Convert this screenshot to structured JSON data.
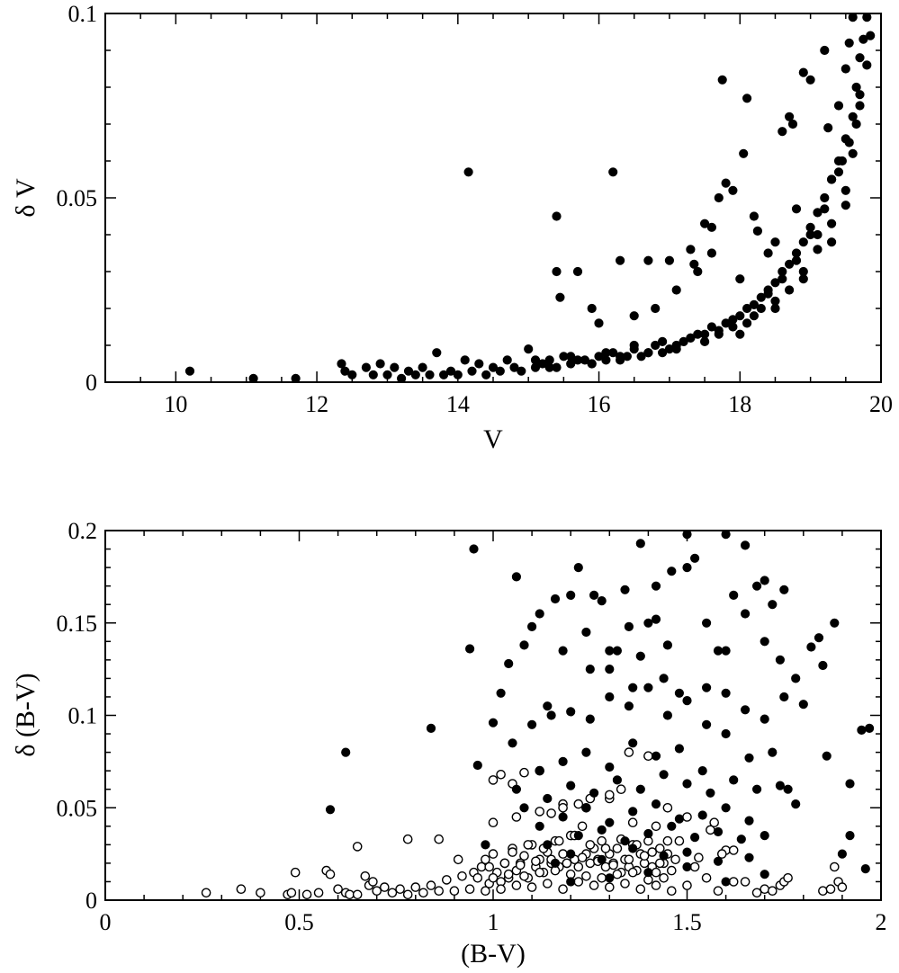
{
  "chart_data": [
    {
      "type": "scatter",
      "title": "",
      "xlabel": "V",
      "ylabel": "δ V",
      "xlim": [
        9,
        20
      ],
      "ylim": [
        0,
        0.1
      ],
      "xticks": [
        10,
        12,
        14,
        16,
        18,
        20
      ],
      "xtick_labels": [
        "10",
        "12",
        "14",
        "16",
        "18",
        "20"
      ],
      "yticks": [
        0,
        0.05,
        0.1
      ],
      "ytick_labels": [
        "0",
        "0.05",
        "0.1"
      ],
      "grid": false,
      "series": [
        {
          "marker": "filled-circle",
          "x": [
            10.2,
            11.1,
            11.7,
            12.35,
            12.4,
            12.5,
            12.7,
            12.8,
            12.9,
            13.0,
            13.1,
            13.2,
            13.3,
            13.4,
            13.5,
            13.6,
            13.7,
            13.8,
            13.9,
            14.0,
            14.1,
            14.2,
            14.3,
            14.4,
            14.5,
            14.6,
            14.7,
            14.8,
            14.9,
            15.0,
            15.1,
            15.2,
            15.3,
            15.4,
            15.5,
            15.6,
            15.7,
            15.8,
            15.9,
            16.0,
            16.1,
            16.2,
            16.3,
            16.4,
            16.5,
            16.6,
            16.7,
            16.8,
            16.9,
            17.0,
            17.1,
            17.2,
            17.3,
            17.4,
            17.5,
            17.6,
            17.7,
            17.8,
            17.9,
            18.0,
            18.1,
            18.2,
            18.3,
            18.4,
            18.5,
            18.6,
            18.7,
            18.8,
            18.9,
            19.0,
            19.1,
            19.2,
            19.3,
            19.4,
            19.5,
            19.6,
            19.7,
            19.8,
            15.1,
            15.3,
            15.6,
            15.9,
            16.1,
            16.3,
            16.5,
            16.7,
            16.9,
            17.1,
            17.3,
            17.5,
            17.7,
            17.9,
            18.1,
            18.3,
            18.5,
            18.7,
            18.9,
            19.1,
            19.3,
            19.5,
            19.6,
            19.7,
            18.2,
            18.4,
            18.6,
            18.8,
            19.0,
            19.2,
            19.4,
            19.55,
            19.65,
            19.75,
            18.0,
            18.5,
            18.9,
            19.3,
            19.5,
            19.65,
            19.8,
            14.15,
            16.2,
            15.4,
            15.4,
            15.45,
            15.7,
            15.9,
            16.0,
            16.3,
            16.5,
            16.7,
            16.8,
            17.0,
            17.1,
            17.3,
            17.4,
            17.5,
            17.6,
            17.7,
            17.75,
            17.8,
            17.9,
            18.0,
            18.1,
            18.2,
            18.4,
            18.5,
            18.6,
            18.7,
            18.8,
            18.9,
            19.0,
            19.1,
            19.2,
            19.3,
            19.4,
            19.45,
            19.5,
            19.55,
            19.6,
            19.7,
            17.35,
            17.6,
            18.05,
            18.25,
            18.75,
            19.25,
            19.85
          ],
          "y": [
            0.003,
            0.001,
            0.001,
            0.005,
            0.003,
            0.002,
            0.004,
            0.002,
            0.005,
            0.002,
            0.004,
            0.001,
            0.003,
            0.002,
            0.004,
            0.002,
            0.008,
            0.002,
            0.003,
            0.002,
            0.006,
            0.003,
            0.005,
            0.002,
            0.004,
            0.003,
            0.006,
            0.004,
            0.003,
            0.009,
            0.004,
            0.005,
            0.006,
            0.004,
            0.007,
            0.005,
            0.006,
            0.006,
            0.005,
            0.007,
            0.006,
            0.008,
            0.007,
            0.007,
            0.009,
            0.007,
            0.008,
            0.01,
            0.008,
            0.009,
            0.01,
            0.011,
            0.012,
            0.013,
            0.013,
            0.015,
            0.014,
            0.016,
            0.017,
            0.018,
            0.02,
            0.021,
            0.023,
            0.025,
            0.027,
            0.03,
            0.032,
            0.035,
            0.038,
            0.042,
            0.046,
            0.05,
            0.055,
            0.06,
            0.066,
            0.072,
            0.078,
            0.086,
            0.006,
            0.004,
            0.007,
            0.005,
            0.008,
            0.006,
            0.01,
            0.008,
            0.011,
            0.009,
            0.012,
            0.011,
            0.013,
            0.015,
            0.016,
            0.02,
            0.022,
            0.025,
            0.03,
            0.036,
            0.043,
            0.052,
            0.062,
            0.075,
            0.018,
            0.024,
            0.028,
            0.033,
            0.04,
            0.047,
            0.057,
            0.065,
            0.08,
            0.093,
            0.013,
            0.02,
            0.028,
            0.038,
            0.048,
            0.07,
            0.099,
            0.057,
            0.057,
            0.045,
            0.03,
            0.023,
            0.03,
            0.02,
            0.016,
            0.033,
            0.018,
            0.033,
            0.02,
            0.033,
            0.025,
            0.036,
            0.03,
            0.043,
            0.035,
            0.05,
            0.082,
            0.054,
            0.052,
            0.028,
            0.077,
            0.045,
            0.035,
            0.038,
            0.068,
            0.072,
            0.047,
            0.084,
            0.082,
            0.04,
            0.09,
            0.055,
            0.075,
            0.06,
            0.085,
            0.092,
            0.099,
            0.088,
            0.032,
            0.042,
            0.062,
            0.041,
            0.07,
            0.069,
            0.094
          ]
        }
      ]
    },
    {
      "type": "scatter",
      "title": "",
      "xlabel": "(B-V)",
      "ylabel": "δ (B-V)",
      "xlim": [
        0,
        2
      ],
      "ylim": [
        0,
        0.2
      ],
      "xticks": [
        0,
        0.5,
        1,
        1.5,
        2
      ],
      "xtick_labels": [
        "0",
        "0.5",
        "1",
        "1.5",
        "2"
      ],
      "yticks": [
        0,
        0.05,
        0.1,
        0.15,
        0.2
      ],
      "ytick_labels": [
        "0",
        "0.05",
        "0.1",
        "0.15",
        "0.2"
      ],
      "grid": false,
      "series": [
        {
          "marker": "open-circle",
          "x": [
            0.26,
            0.35,
            0.4,
            0.47,
            0.48,
            0.49,
            0.52,
            0.55,
            0.57,
            0.58,
            0.6,
            0.62,
            0.63,
            0.65,
            0.67,
            0.68,
            0.69,
            0.7,
            0.72,
            0.74,
            0.76,
            0.78,
            0.8,
            0.82,
            0.84,
            0.86,
            0.88,
            0.9,
            0.92,
            0.94,
            0.95,
            0.96,
            0.97,
            0.98,
            0.99,
            1.0,
            1.01,
            1.02,
            1.03,
            1.04,
            1.05,
            1.06,
            1.07,
            1.08,
            1.09,
            1.1,
            1.11,
            1.12,
            1.13,
            1.14,
            1.15,
            1.16,
            1.17,
            1.18,
            1.19,
            1.2,
            1.21,
            1.22,
            1.23,
            1.24,
            1.25,
            1.26,
            1.27,
            1.28,
            1.29,
            1.3,
            1.31,
            1.32,
            1.33,
            1.34,
            1.35,
            1.36,
            1.37,
            1.38,
            1.39,
            1.4,
            1.41,
            1.42,
            1.43,
            1.44,
            1.45,
            1.46,
            1.47,
            1.48,
            1.5,
            1.52,
            1.55,
            1.57,
            1.58,
            1.6,
            1.62,
            1.65,
            1.68,
            1.7,
            1.72,
            1.74,
            1.75,
            1.76,
            1.85,
            1.87,
            1.88,
            1.89,
            1.9,
            0.98,
            1.02,
            1.06,
            1.1,
            1.14,
            1.18,
            1.22,
            1.26,
            1.3,
            1.34,
            1.38,
            1.42,
            1.46,
            1.0,
            1.04,
            1.08,
            1.12,
            1.16,
            1.2,
            1.24,
            1.28,
            1.32,
            1.36,
            1.4,
            1.44,
            0.99,
            1.03,
            1.07,
            1.11,
            1.15,
            1.19,
            1.23,
            1.27,
            1.31,
            1.35,
            1.39,
            1.43,
            1.05,
            1.09,
            1.13,
            1.17,
            1.21,
            1.25,
            1.29,
            1.33,
            1.37,
            1.41,
            1.45,
            1.0,
            1.06,
            1.12,
            1.18,
            1.24,
            1.3,
            1.36,
            1.42,
            0.65,
            0.78,
            0.86,
            0.91,
            1.0,
            1.02,
            1.05,
            1.08,
            1.12,
            1.15,
            1.18,
            1.22,
            1.25,
            1.3,
            1.33,
            1.35,
            1.4,
            1.45,
            1.5,
            1.53,
            1.56,
            1.59,
            1.62
          ],
          "y": [
            0.004,
            0.006,
            0.004,
            0.003,
            0.004,
            0.015,
            0.003,
            0.004,
            0.016,
            0.014,
            0.006,
            0.004,
            0.003,
            0.003,
            0.013,
            0.008,
            0.01,
            0.005,
            0.007,
            0.004,
            0.006,
            0.003,
            0.007,
            0.004,
            0.008,
            0.005,
            0.011,
            0.005,
            0.013,
            0.006,
            0.015,
            0.012,
            0.018,
            0.022,
            0.009,
            0.025,
            0.015,
            0.01,
            0.02,
            0.012,
            0.028,
            0.016,
            0.02,
            0.024,
            0.012,
            0.03,
            0.018,
            0.022,
            0.015,
            0.026,
            0.02,
            0.032,
            0.018,
            0.025,
            0.02,
            0.035,
            0.022,
            0.018,
            0.04,
            0.025,
            0.02,
            0.028,
            0.022,
            0.032,
            0.018,
            0.025,
            0.02,
            0.028,
            0.015,
            0.022,
            0.018,
            0.03,
            0.016,
            0.025,
            0.02,
            0.032,
            0.018,
            0.015,
            0.028,
            0.02,
            0.025,
            0.016,
            0.022,
            0.032,
            0.008,
            0.018,
            0.012,
            0.042,
            0.005,
            0.027,
            0.01,
            0.01,
            0.004,
            0.006,
            0.005,
            0.008,
            0.01,
            0.012,
            0.005,
            0.006,
            0.018,
            0.01,
            0.007,
            0.005,
            0.006,
            0.008,
            0.007,
            0.009,
            0.006,
            0.01,
            0.008,
            0.007,
            0.009,
            0.006,
            0.008,
            0.005,
            0.012,
            0.014,
            0.013,
            0.015,
            0.016,
            0.014,
            0.013,
            0.012,
            0.014,
            0.015,
            0.011,
            0.012,
            0.018,
            0.02,
            0.019,
            0.021,
            0.022,
            0.02,
            0.023,
            0.021,
            0.019,
            0.022,
            0.024,
            0.02,
            0.026,
            0.03,
            0.028,
            0.032,
            0.035,
            0.03,
            0.028,
            0.033,
            0.03,
            0.026,
            0.032,
            0.042,
            0.045,
            0.048,
            0.052,
            0.05,
            0.055,
            0.042,
            0.04,
            0.029,
            0.033,
            0.033,
            0.022,
            0.065,
            0.068,
            0.063,
            0.069,
            0.07,
            0.047,
            0.05,
            0.052,
            0.055,
            0.057,
            0.06,
            0.08,
            0.078,
            0.05,
            0.045,
            0.023,
            0.038,
            0.025,
            0.027
          ]
        },
        {
          "marker": "filled-circle",
          "x": [
            0.58,
            0.62,
            0.84,
            0.94,
            0.95,
            0.96,
            1.0,
            1.06,
            1.1,
            1.12,
            1.14,
            1.16,
            1.2,
            1.22,
            1.24,
            1.26,
            1.28,
            1.3,
            1.32,
            1.34,
            1.36,
            1.38,
            1.4,
            1.42,
            1.44,
            1.46,
            1.48,
            1.5,
            1.52,
            1.55,
            1.58,
            1.6,
            1.62,
            1.65,
            1.68,
            1.7,
            1.72,
            1.75,
            1.78,
            1.82,
            1.85,
            1.88,
            1.92,
            1.95,
            1.97,
            0.98,
            1.02,
            1.04,
            1.08,
            1.18,
            1.25,
            1.3,
            1.35,
            1.38,
            1.42,
            1.45,
            1.5,
            1.55,
            1.6,
            1.65,
            1.7,
            1.74,
            1.78,
            1.84,
            1.9,
            1.96,
            1.05,
            1.1,
            1.15,
            1.2,
            1.25,
            1.3,
            1.35,
            1.4,
            1.45,
            1.5,
            1.55,
            1.6,
            1.65,
            1.7,
            1.75,
            1.8,
            1.06,
            1.12,
            1.18,
            1.24,
            1.3,
            1.36,
            1.42,
            1.48,
            1.54,
            1.6,
            1.66,
            1.72,
            1.08,
            1.14,
            1.2,
            1.26,
            1.32,
            1.38,
            1.44,
            1.5,
            1.56,
            1.62,
            1.68,
            1.74,
            1.12,
            1.18,
            1.24,
            1.3,
            1.36,
            1.42,
            1.48,
            1.54,
            1.6,
            1.66,
            1.14,
            1.22,
            1.28,
            1.34,
            1.4,
            1.46,
            1.52,
            1.58,
            1.64,
            1.7,
            1.16,
            1.2,
            1.28,
            1.36,
            1.44,
            1.5,
            1.58,
            1.66,
            1.2,
            1.3,
            1.4,
            1.5,
            1.6,
            1.7,
            1.76,
            1.86,
            1.92
          ],
          "y": [
            0.049,
            0.08,
            0.093,
            0.136,
            0.19,
            0.073,
            0.096,
            0.175,
            0.148,
            0.155,
            0.105,
            0.163,
            0.165,
            0.18,
            0.145,
            0.165,
            0.162,
            0.125,
            0.135,
            0.168,
            0.115,
            0.193,
            0.15,
            0.17,
            0.12,
            0.178,
            0.112,
            0.198,
            0.185,
            0.15,
            0.135,
            0.198,
            0.165,
            0.192,
            0.17,
            0.173,
            0.16,
            0.168,
            0.052,
            0.137,
            0.127,
            0.15,
            0.063,
            0.092,
            0.093,
            0.03,
            0.112,
            0.128,
            0.138,
            0.135,
            0.125,
            0.135,
            0.148,
            0.132,
            0.152,
            0.138,
            0.18,
            0.115,
            0.135,
            0.155,
            0.14,
            0.13,
            0.12,
            0.142,
            0.025,
            0.017,
            0.085,
            0.095,
            0.1,
            0.102,
            0.098,
            0.11,
            0.105,
            0.115,
            0.1,
            0.108,
            0.095,
            0.112,
            0.103,
            0.098,
            0.11,
            0.106,
            0.06,
            0.07,
            0.075,
            0.08,
            0.072,
            0.085,
            0.078,
            0.082,
            0.07,
            0.09,
            0.077,
            0.08,
            0.05,
            0.055,
            0.062,
            0.058,
            0.065,
            0.06,
            0.068,
            0.063,
            0.058,
            0.065,
            0.06,
            0.062,
            0.04,
            0.045,
            0.05,
            0.042,
            0.048,
            0.052,
            0.044,
            0.046,
            0.05,
            0.043,
            0.03,
            0.035,
            0.038,
            0.032,
            0.036,
            0.04,
            0.034,
            0.037,
            0.033,
            0.035,
            0.02,
            0.025,
            0.022,
            0.028,
            0.024,
            0.026,
            0.021,
            0.023,
            0.01,
            0.012,
            0.015,
            0.018,
            0.01,
            0.014,
            0.06,
            0.078,
            0.035
          ]
        }
      ]
    }
  ]
}
